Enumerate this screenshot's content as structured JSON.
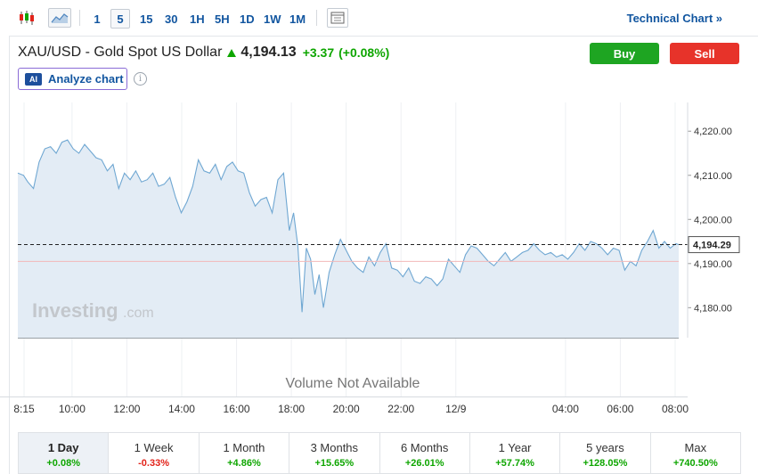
{
  "toolbar": {
    "chart_type_icons": [
      "candlestick-icon",
      "area-chart-icon"
    ],
    "intervals": [
      "1",
      "5",
      "15",
      "30",
      "1H",
      "5H",
      "1D",
      "1W",
      "1M"
    ],
    "active_interval": "5",
    "layout_icon": "layout-icon",
    "technical_chart_label": "Technical Chart »"
  },
  "instrument": {
    "title": "XAU/USD - Gold Spot US Dollar",
    "price": "4,194.13",
    "change": "+3.37",
    "change_pct": "(+0.08%)",
    "direction": "up"
  },
  "actions": {
    "buy_label": "Buy",
    "sell_label": "Sell",
    "analyze_badge": "AI",
    "analyze_label": "Analyze chart",
    "info_glyph": "i"
  },
  "colors": {
    "up": "#0ea600",
    "down": "#e2231a",
    "line": "#6fa7d2",
    "area": "#e3ecf5",
    "buy": "#1ea522",
    "sell": "#e7332a"
  },
  "watermark": {
    "brand": "Investing",
    "suffix": ".com"
  },
  "chart_data": {
    "type": "area",
    "xlabel": "",
    "ylabel": "",
    "y_axis_position": "right",
    "y_ticks": [
      4180,
      4190,
      4200,
      4210,
      4220
    ],
    "y_tick_labels": [
      "4,180.00",
      "4,190.00",
      "4,200.00",
      "4,210.00",
      "4,220.00"
    ],
    "ylim": [
      4173.2,
      4225.5
    ],
    "x_ticks": [
      "8:15",
      "10:00",
      "12:00",
      "14:00",
      "16:00",
      "18:00",
      "20:00",
      "22:00",
      "12/9",
      "04:00",
      "06:00",
      "08:00"
    ],
    "x_tick_positions": [
      8.25,
      10,
      12,
      14,
      16,
      18,
      20,
      22,
      24,
      28,
      30,
      32
    ],
    "xlim": [
      8.25,
      31.5
    ],
    "last_price": 4194.29,
    "last_price_label": "4,194.29",
    "reference_line": 4190.5,
    "series": [
      {
        "x": [
          8.25,
          8.45,
          8.6,
          8.8,
          9.0,
          9.2,
          9.4,
          9.6,
          9.8,
          10.0,
          10.2,
          10.4,
          10.6,
          10.8,
          11.0,
          11.2,
          11.4,
          11.6,
          11.8,
          12.0,
          12.2,
          12.4,
          12.6,
          12.8,
          13.0,
          13.2,
          13.4,
          13.6,
          13.8,
          14.0,
          14.2,
          14.4,
          14.6,
          14.8,
          15.0,
          15.2,
          15.4,
          15.6,
          15.8,
          16.0,
          16.2,
          16.4,
          16.6,
          16.8,
          17.0,
          17.2,
          17.4,
          17.6,
          17.8,
          17.95,
          18.1,
          18.25,
          18.4,
          18.55,
          18.7,
          18.85,
          19.0,
          19.2,
          19.4,
          19.6,
          19.8,
          20.0,
          20.2,
          20.4,
          20.6,
          20.8,
          21.0,
          21.2,
          21.4,
          21.6,
          21.8,
          22.0,
          22.2,
          22.4,
          22.6,
          22.8,
          23.0,
          23.2,
          23.4,
          23.6,
          23.8,
          24.0,
          24.2,
          24.4,
          24.6,
          24.8,
          25.0,
          25.2,
          25.4,
          25.6,
          25.8,
          26.0,
          26.2,
          26.4,
          26.6,
          26.8,
          27.0,
          27.2,
          27.4,
          27.6,
          27.8,
          28.0,
          28.2,
          28.4,
          28.6,
          28.8,
          29.0,
          29.2,
          29.4,
          29.6,
          29.8,
          30.0,
          30.2,
          30.4,
          30.6,
          30.8,
          31.0,
          31.2,
          31.4,
          31.5
        ],
        "values": [
          4210.5,
          4210.0,
          4208.5,
          4207.0,
          4213.0,
          4216.0,
          4216.5,
          4215.0,
          4217.5,
          4218.0,
          4216.0,
          4215.0,
          4217.0,
          4215.5,
          4214.0,
          4213.5,
          4211.0,
          4212.5,
          4207.0,
          4210.5,
          4209.0,
          4211.0,
          4208.5,
          4209.0,
          4210.5,
          4207.5,
          4208.0,
          4209.5,
          4205.0,
          4201.5,
          4204.0,
          4207.5,
          4213.5,
          4211.0,
          4210.5,
          4212.5,
          4209.0,
          4212.0,
          4213.0,
          4211.0,
          4210.5,
          4206.0,
          4203.0,
          4204.5,
          4205.0,
          4201.5,
          4209.0,
          4210.5,
          4197.5,
          4201.5,
          4194.0,
          4179.0,
          4193.5,
          4191.0,
          4183.0,
          4187.5,
          4180.0,
          4188.0,
          4192.0,
          4195.5,
          4193.0,
          4190.5,
          4189.0,
          4188.0,
          4191.5,
          4189.5,
          4192.5,
          4194.5,
          4189.0,
          4188.5,
          4187.0,
          4189.0,
          4186.0,
          4185.5,
          4187.0,
          4186.5,
          4185.0,
          4186.5,
          4191.0,
          4189.5,
          4188.0,
          4192.0,
          4194.0,
          4193.5,
          4192.0,
          4190.5,
          4189.5,
          4191.0,
          4192.5,
          4190.5,
          4191.5,
          4192.5,
          4193.0,
          4194.5,
          4193.0,
          4192.0,
          4192.5,
          4191.5,
          4192.0,
          4191.0,
          4192.5,
          4194.5,
          4193.0,
          4195.0,
          4194.5,
          4193.5,
          4192.0,
          4193.5,
          4193.0,
          4188.5,
          4190.5,
          4189.5,
          4193.0,
          4195.0,
          4197.5,
          4193.5,
          4195.0,
          4193.5,
          4194.5,
          4194.3
        ]
      }
    ],
    "volume_message": "Volume Not Available",
    "grid": "vertical"
  },
  "periods": [
    {
      "label": "1 Day",
      "change": "+0.08%",
      "direction": "up",
      "active": true
    },
    {
      "label": "1 Week",
      "change": "-0.33%",
      "direction": "down",
      "active": false
    },
    {
      "label": "1 Month",
      "change": "+4.86%",
      "direction": "up",
      "active": false
    },
    {
      "label": "3 Months",
      "change": "+15.65%",
      "direction": "up",
      "active": false
    },
    {
      "label": "6 Months",
      "change": "+26.01%",
      "direction": "up",
      "active": false
    },
    {
      "label": "1 Year",
      "change": "+57.74%",
      "direction": "up",
      "active": false
    },
    {
      "label": "5 years",
      "change": "+128.05%",
      "direction": "up",
      "active": false
    },
    {
      "label": "Max",
      "change": "+740.50%",
      "direction": "up",
      "active": false
    }
  ]
}
